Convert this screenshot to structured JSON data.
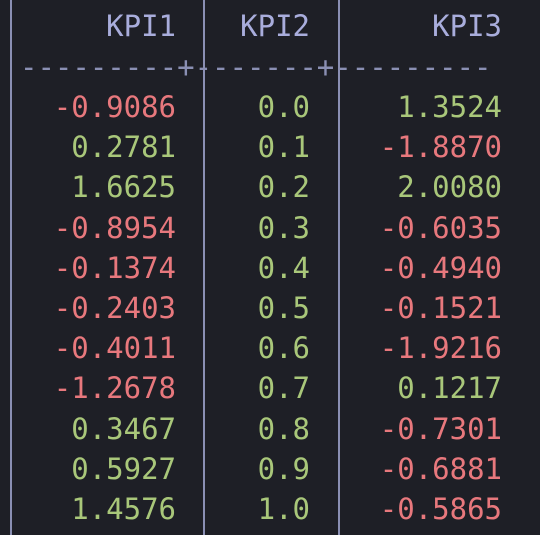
{
  "table": {
    "headers": [
      "KPI1",
      "KPI2",
      "KPI3"
    ],
    "separator": "---------+-------+---------",
    "rows": [
      [
        "-0.9086",
        "0.0",
        "1.3524"
      ],
      [
        "0.2781",
        "0.1",
        "-1.8870"
      ],
      [
        "1.6625",
        "0.2",
        "2.0080"
      ],
      [
        "-0.8954",
        "0.3",
        "-0.6035"
      ],
      [
        "-0.1374",
        "0.4",
        "-0.4940"
      ],
      [
        "-0.2403",
        "0.5",
        "-0.1521"
      ],
      [
        "-0.4011",
        "0.6",
        "-1.9216"
      ],
      [
        "-1.2678",
        "0.7",
        "0.1217"
      ],
      [
        "0.3467",
        "0.8",
        "-0.7301"
      ],
      [
        "0.5927",
        "0.9",
        "-0.6881"
      ],
      [
        "1.4576",
        "1.0",
        "-0.5865"
      ]
    ]
  },
  "colors": {
    "background": "#1e1f26",
    "negative": "#e8787d",
    "positive": "#a9c77a",
    "header": "#a9addc",
    "border": "#8a8fb3"
  }
}
